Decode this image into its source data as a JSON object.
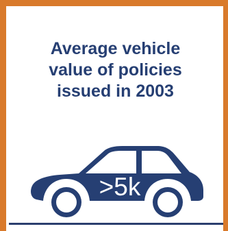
{
  "title": {
    "line1": "Average vehicle",
    "line2": "value of policies",
    "line3": "issued in 2003"
  },
  "value": ">5k",
  "icons": {
    "car": "car-icon"
  },
  "colors": {
    "border": "#d97a2b",
    "navy": "#263f73"
  }
}
